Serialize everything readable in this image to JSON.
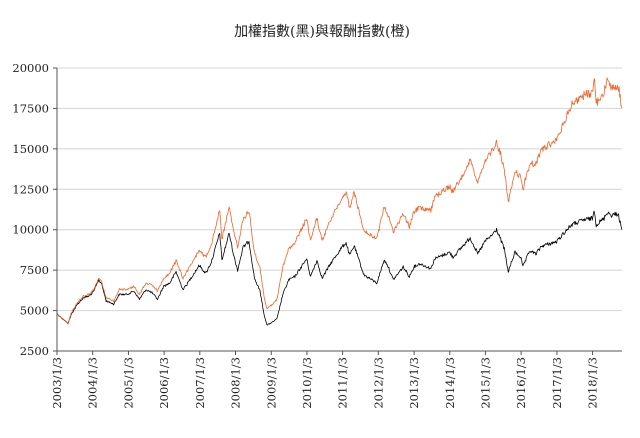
{
  "chart_data": {
    "type": "line",
    "title": "加權指數(黑)與報酬指數(橙)",
    "xlabel": "",
    "ylabel": "",
    "x_range": [
      "2003-01-03",
      "2018-10-31"
    ],
    "ylim": [
      2500,
      20000
    ],
    "y_ticks": [
      2500,
      5000,
      7500,
      10000,
      12500,
      15000,
      17500,
      20000
    ],
    "y_tick_labels": [
      "2500",
      "5000",
      "7500",
      "10000",
      "12500",
      "15000",
      "17500",
      "20000"
    ],
    "x_ticks": [
      "2003-01-03",
      "2004-01-03",
      "2005-01-03",
      "2006-01-03",
      "2007-01-03",
      "2008-01-03",
      "2009-01-03",
      "2010-01-03",
      "2011-01-03",
      "2012-01-03",
      "2013-01-03",
      "2014-01-03",
      "2015-01-03",
      "2016-01-03",
      "2017-01-03",
      "2018-01-03"
    ],
    "x_tick_labels": [
      "2003/1/3",
      "2004/1/3",
      "2005/1/3",
      "2006/1/3",
      "2007/1/3",
      "2008/1/3",
      "2009/1/3",
      "2010/1/3",
      "2011/1/3",
      "2012/1/3",
      "2013/1/3",
      "2014/1/3",
      "2015/1/3",
      "2016/1/3",
      "2017/1/3",
      "2018/1/3"
    ],
    "grid": "horizontal",
    "legend": "none",
    "series": [
      {
        "color": "#000000",
        "points": [
          [
            "2003-01-03",
            4800
          ],
          [
            "2003-03-01",
            4500
          ],
          [
            "2003-04-25",
            4200
          ],
          [
            "2003-06-01",
            4800
          ],
          [
            "2003-08-01",
            5400
          ],
          [
            "2003-10-01",
            5800
          ],
          [
            "2003-12-01",
            5900
          ],
          [
            "2004-01-15",
            6200
          ],
          [
            "2004-03-05",
            6900
          ],
          [
            "2004-04-01",
            6700
          ],
          [
            "2004-05-20",
            5600
          ],
          [
            "2004-08-05",
            5400
          ],
          [
            "2004-10-01",
            6000
          ],
          [
            "2004-12-15",
            6000
          ],
          [
            "2005-03-01",
            6200
          ],
          [
            "2005-04-25",
            5700
          ],
          [
            "2005-07-01",
            6300
          ],
          [
            "2005-09-01",
            6100
          ],
          [
            "2005-10-28",
            5700
          ],
          [
            "2005-12-28",
            6500
          ],
          [
            "2006-03-01",
            6700
          ],
          [
            "2006-05-05",
            7400
          ],
          [
            "2006-07-15",
            6300
          ],
          [
            "2006-09-01",
            6700
          ],
          [
            "2006-12-28",
            7800
          ],
          [
            "2007-03-05",
            7300
          ],
          [
            "2007-05-01",
            8000
          ],
          [
            "2007-07-26",
            9800
          ],
          [
            "2007-08-17",
            8100
          ],
          [
            "2007-10-30",
            9800
          ],
          [
            "2007-12-20",
            8300
          ],
          [
            "2008-01-25",
            7500
          ],
          [
            "2008-03-20",
            8900
          ],
          [
            "2008-05-20",
            9300
          ],
          [
            "2008-07-15",
            7000
          ],
          [
            "2008-09-10",
            6200
          ],
          [
            "2008-10-20",
            4800
          ],
          [
            "2008-11-20",
            4100
          ],
          [
            "2009-01-20",
            4300
          ],
          [
            "2009-03-03",
            4500
          ],
          [
            "2009-05-01",
            6000
          ],
          [
            "2009-07-01",
            6900
          ],
          [
            "2009-09-01",
            7100
          ],
          [
            "2009-12-31",
            8200
          ],
          [
            "2010-02-08",
            7100
          ],
          [
            "2010-04-15",
            8100
          ],
          [
            "2010-06-08",
            7000
          ],
          [
            "2010-09-01",
            7900
          ],
          [
            "2010-12-31",
            8950
          ],
          [
            "2011-02-08",
            9200
          ],
          [
            "2011-03-15",
            8400
          ],
          [
            "2011-05-01",
            9000
          ],
          [
            "2011-08-09",
            7200
          ],
          [
            "2011-10-04",
            7000
          ],
          [
            "2011-12-19",
            6700
          ],
          [
            "2012-03-01",
            8100
          ],
          [
            "2012-04-01",
            7900
          ],
          [
            "2012-06-04",
            6900
          ],
          [
            "2012-09-14",
            7700
          ],
          [
            "2012-11-16",
            7100
          ],
          [
            "2012-12-31",
            7700
          ],
          [
            "2013-03-01",
            7900
          ],
          [
            "2013-06-24",
            7600
          ],
          [
            "2013-08-01",
            8200
          ],
          [
            "2013-12-31",
            8600
          ],
          [
            "2014-02-05",
            8300
          ],
          [
            "2014-06-01",
            9100
          ],
          [
            "2014-07-31",
            9500
          ],
          [
            "2014-10-17",
            8500
          ],
          [
            "2014-12-31",
            9300
          ],
          [
            "2015-03-01",
            9600
          ],
          [
            "2015-04-27",
            10000
          ],
          [
            "2015-06-01",
            9500
          ],
          [
            "2015-07-15",
            8800
          ],
          [
            "2015-08-24",
            7400
          ],
          [
            "2015-11-01",
            8600
          ],
          [
            "2015-12-31",
            8300
          ],
          [
            "2016-01-21",
            7700
          ],
          [
            "2016-04-01",
            8700
          ],
          [
            "2016-06-01",
            8500
          ],
          [
            "2016-08-01",
            9000
          ],
          [
            "2016-12-31",
            9250
          ],
          [
            "2017-03-01",
            9700
          ],
          [
            "2017-06-01",
            10300
          ],
          [
            "2017-10-01",
            10600
          ],
          [
            "2017-12-31",
            10700
          ],
          [
            "2018-01-23",
            11200
          ],
          [
            "2018-02-09",
            10300
          ],
          [
            "2018-05-01",
            10700
          ],
          [
            "2018-06-01",
            11100
          ],
          [
            "2018-07-15",
            10900
          ],
          [
            "2018-09-20",
            11000
          ],
          [
            "2018-10-31",
            10000
          ]
        ]
      },
      {
        "color": "#f0642a",
        "points": [
          [
            "2003-01-03",
            4800
          ],
          [
            "2003-03-01",
            4500
          ],
          [
            "2003-04-25",
            4200
          ],
          [
            "2003-06-01",
            4900
          ],
          [
            "2003-08-01",
            5500
          ],
          [
            "2003-10-01",
            5900
          ],
          [
            "2003-12-01",
            6000
          ],
          [
            "2004-01-15",
            6300
          ],
          [
            "2004-03-05",
            7000
          ],
          [
            "2004-04-01",
            6800
          ],
          [
            "2004-05-20",
            5800
          ],
          [
            "2004-08-05",
            5600
          ],
          [
            "2004-10-01",
            6300
          ],
          [
            "2004-12-15",
            6300
          ],
          [
            "2005-03-01",
            6500
          ],
          [
            "2005-04-25",
            6000
          ],
          [
            "2005-07-01",
            6700
          ],
          [
            "2005-09-01",
            6600
          ],
          [
            "2005-10-28",
            6200
          ],
          [
            "2005-12-28",
            7000
          ],
          [
            "2006-03-01",
            7300
          ],
          [
            "2006-05-05",
            8100
          ],
          [
            "2006-07-15",
            7000
          ],
          [
            "2006-09-01",
            7500
          ],
          [
            "2006-12-28",
            8700
          ],
          [
            "2007-03-05",
            8300
          ],
          [
            "2007-05-01",
            9100
          ],
          [
            "2007-07-26",
            11300
          ],
          [
            "2007-08-17",
            9400
          ],
          [
            "2007-10-30",
            11400
          ],
          [
            "2007-12-20",
            9800
          ],
          [
            "2008-01-25",
            8900
          ],
          [
            "2008-03-20",
            10600
          ],
          [
            "2008-05-20",
            11200
          ],
          [
            "2008-07-15",
            8600
          ],
          [
            "2008-09-10",
            7600
          ],
          [
            "2008-10-20",
            5900
          ],
          [
            "2008-11-20",
            5100
          ],
          [
            "2009-01-20",
            5400
          ],
          [
            "2009-03-03",
            5700
          ],
          [
            "2009-05-01",
            7700
          ],
          [
            "2009-07-01",
            8800
          ],
          [
            "2009-09-01",
            9200
          ],
          [
            "2009-12-31",
            10700
          ],
          [
            "2010-02-08",
            9300
          ],
          [
            "2010-04-15",
            10700
          ],
          [
            "2010-06-08",
            9300
          ],
          [
            "2010-09-01",
            10600
          ],
          [
            "2010-12-31",
            12000
          ],
          [
            "2011-02-08",
            12300
          ],
          [
            "2011-03-15",
            11400
          ],
          [
            "2011-05-01",
            12300
          ],
          [
            "2011-08-09",
            10000
          ],
          [
            "2011-10-04",
            9700
          ],
          [
            "2011-12-19",
            9400
          ],
          [
            "2012-03-01",
            11400
          ],
          [
            "2012-04-01",
            11100
          ],
          [
            "2012-06-04",
            9800
          ],
          [
            "2012-09-14",
            11000
          ],
          [
            "2012-11-16",
            10200
          ],
          [
            "2012-12-31",
            11100
          ],
          [
            "2013-03-01",
            11400
          ],
          [
            "2013-06-24",
            11200
          ],
          [
            "2013-08-01",
            12000
          ],
          [
            "2013-12-31",
            12700
          ],
          [
            "2014-02-05",
            12300
          ],
          [
            "2014-06-01",
            13600
          ],
          [
            "2014-07-31",
            14300
          ],
          [
            "2014-10-17",
            12900
          ],
          [
            "2014-12-31",
            14200
          ],
          [
            "2015-03-01",
            14800
          ],
          [
            "2015-04-27",
            15400
          ],
          [
            "2015-06-01",
            14800
          ],
          [
            "2015-07-15",
            13700
          ],
          [
            "2015-08-24",
            11700
          ],
          [
            "2015-11-01",
            13600
          ],
          [
            "2015-12-31",
            13300
          ],
          [
            "2016-01-21",
            12500
          ],
          [
            "2016-04-01",
            14100
          ],
          [
            "2016-06-01",
            14000
          ],
          [
            "2016-08-01",
            15000
          ],
          [
            "2016-12-31",
            15500
          ],
          [
            "2017-03-01",
            16400
          ],
          [
            "2017-06-01",
            17700
          ],
          [
            "2017-10-01",
            18300
          ],
          [
            "2017-12-31",
            18500
          ],
          [
            "2018-01-23",
            19300
          ],
          [
            "2018-02-09",
            17800
          ],
          [
            "2018-05-01",
            18600
          ],
          [
            "2018-06-01",
            19100
          ],
          [
            "2018-07-15",
            18700
          ],
          [
            "2018-09-20",
            19000
          ],
          [
            "2018-10-31",
            17500
          ]
        ]
      }
    ]
  }
}
